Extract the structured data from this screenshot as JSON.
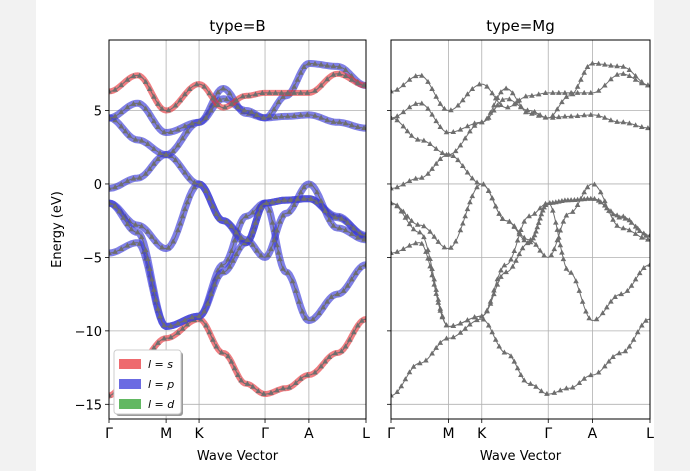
{
  "colors": {
    "s": "#e8383d",
    "p": "#3a3ad8",
    "d": "#2ea02e",
    "marker": "#6e6e6e"
  },
  "chart_data": [
    {
      "type": "line",
      "title": "type=B",
      "xlabel": "Wave Vector",
      "ylabel": "Energy (eV)",
      "ylim": [
        -16,
        9.8
      ],
      "yticks": [
        5,
        0,
        -5,
        -10,
        -15
      ],
      "ytick_labels": [
        "5",
        "0",
        "−5",
        "−10",
        "−15"
      ],
      "kpoints": [
        {
          "label": "Γ",
          "x": 0
        },
        {
          "label": "M",
          "x": 1
        },
        {
          "label": "K",
          "x": 1.577
        },
        {
          "label": "Γ",
          "x": 2.732
        },
        {
          "label": "A",
          "x": 3.5
        },
        {
          "label": "L",
          "x": 4.5
        }
      ],
      "grid": true,
      "legend": {
        "placement": "lower-left",
        "entries": [
          {
            "label": "l = s",
            "color_key": "s"
          },
          {
            "label": "l = p",
            "color_key": "p"
          },
          {
            "label": "l = d",
            "color_key": "d"
          }
        ]
      },
      "bands": [
        {
          "name": "1",
          "orbital": "s",
          "points": [
            [
              0,
              -14.4
            ],
            [
              0.5,
              -12.2
            ],
            [
              1,
              -10.5
            ],
            [
              1.577,
              -9.2
            ],
            [
              2.0,
              -11.5
            ],
            [
              2.4,
              -13.6
            ],
            [
              2.732,
              -14.3
            ],
            [
              3.1,
              -13.9
            ],
            [
              3.5,
              -13.0
            ],
            [
              4.0,
              -11.5
            ],
            [
              4.5,
              -9.2
            ]
          ]
        },
        {
          "name": "2",
          "orbital": "p",
          "points": [
            [
              0,
              -4.7
            ],
            [
              0.5,
              -4.0
            ],
            [
              1,
              -9.7
            ],
            [
              1.577,
              -9.0
            ],
            [
              2.0,
              -5.5
            ],
            [
              2.4,
              -2.2
            ],
            [
              2.732,
              -1.3
            ],
            [
              3.1,
              -1.1
            ],
            [
              3.5,
              -1.0
            ],
            [
              4.0,
              -2.2
            ],
            [
              4.5,
              -3.6
            ]
          ]
        },
        {
          "name": "3",
          "orbital": "p",
          "points": [
            [
              0,
              -1.3
            ],
            [
              0.5,
              -2.8
            ],
            [
              1,
              -4.4
            ],
            [
              1.577,
              0.0
            ],
            [
              2.0,
              -2.5
            ],
            [
              2.4,
              -4.0
            ],
            [
              2.732,
              -1.3
            ],
            [
              3.1,
              -6.0
            ],
            [
              3.5,
              -9.3
            ],
            [
              4.0,
              -7.5
            ],
            [
              4.5,
              -5.5
            ]
          ]
        },
        {
          "name": "4",
          "orbital": "p",
          "points": [
            [
              0,
              -1.3
            ],
            [
              0.5,
              -3.3
            ],
            [
              1,
              -9.7
            ],
            [
              1.577,
              -9.0
            ],
            [
              2.0,
              -6.0
            ],
            [
              2.4,
              -4.0
            ],
            [
              2.732,
              -1.3
            ],
            [
              3.1,
              -1.1
            ],
            [
              3.5,
              -1.0
            ],
            [
              4.0,
              -2.3
            ],
            [
              4.5,
              -3.5
            ]
          ]
        },
        {
          "name": "5",
          "orbital": "p",
          "points": [
            [
              0,
              -0.3
            ],
            [
              0.5,
              0.4
            ],
            [
              1,
              2.0
            ],
            [
              1.577,
              0.0
            ],
            [
              2.0,
              -2.5
            ],
            [
              2.4,
              -3.8
            ],
            [
              2.732,
              -5.0
            ],
            [
              3.1,
              -2.0
            ],
            [
              3.5,
              0.0
            ],
            [
              4.0,
              -3.0
            ],
            [
              4.5,
              -3.8
            ]
          ]
        },
        {
          "name": "6",
          "orbital": "p",
          "points": [
            [
              0,
              4.5
            ],
            [
              0.5,
              3.0
            ],
            [
              1,
              2.0
            ],
            [
              1.577,
              4.2
            ],
            [
              2.0,
              6.5
            ],
            [
              2.4,
              4.8
            ],
            [
              2.732,
              4.5
            ],
            [
              3.1,
              4.6
            ],
            [
              3.5,
              4.7
            ],
            [
              4.0,
              4.2
            ],
            [
              4.5,
              3.8
            ]
          ]
        },
        {
          "name": "7",
          "orbital": "p",
          "points": [
            [
              0,
              4.5
            ],
            [
              0.5,
              5.5
            ],
            [
              1,
              3.5
            ],
            [
              1.577,
              4.2
            ],
            [
              2.0,
              5.8
            ],
            [
              2.4,
              5.0
            ],
            [
              2.732,
              4.5
            ],
            [
              3.1,
              6.0
            ],
            [
              3.5,
              8.2
            ],
            [
              4.0,
              8.0
            ],
            [
              4.5,
              6.7
            ]
          ]
        },
        {
          "name": "8",
          "orbital": "s",
          "points": [
            [
              0,
              6.3
            ],
            [
              0.5,
              7.4
            ],
            [
              1,
              5.0
            ],
            [
              1.577,
              6.8
            ],
            [
              2.0,
              5.2
            ],
            [
              2.4,
              6.0
            ],
            [
              2.732,
              6.2
            ],
            [
              3.1,
              6.2
            ],
            [
              3.5,
              6.2
            ],
            [
              4.0,
              7.5
            ],
            [
              4.5,
              6.7
            ]
          ]
        }
      ]
    },
    {
      "type": "line",
      "title": "type=Mg",
      "xlabel": "Wave Vector",
      "ylabel": "",
      "ylim": [
        -16,
        9.8
      ],
      "kpoints": [
        {
          "label": "Γ",
          "x": 0
        },
        {
          "label": "M",
          "x": 1
        },
        {
          "label": "K",
          "x": 1.577
        },
        {
          "label": "Γ",
          "x": 2.732
        },
        {
          "label": "A",
          "x": 3.5
        },
        {
          "label": "L",
          "x": 4.5
        }
      ],
      "grid": true,
      "bands": [
        {
          "name": "1",
          "points": [
            [
              0,
              -14.4
            ],
            [
              0.5,
              -12.2
            ],
            [
              1,
              -10.5
            ],
            [
              1.577,
              -9.2
            ],
            [
              2.0,
              -11.5
            ],
            [
              2.4,
              -13.6
            ],
            [
              2.732,
              -14.3
            ],
            [
              3.1,
              -13.9
            ],
            [
              3.5,
              -13.0
            ],
            [
              4.0,
              -11.5
            ],
            [
              4.5,
              -9.2
            ]
          ]
        },
        {
          "name": "2",
          "points": [
            [
              0,
              -4.7
            ],
            [
              0.5,
              -4.0
            ],
            [
              1,
              -9.7
            ],
            [
              1.577,
              -9.0
            ],
            [
              2.0,
              -5.5
            ],
            [
              2.4,
              -2.2
            ],
            [
              2.732,
              -1.3
            ],
            [
              3.1,
              -1.1
            ],
            [
              3.5,
              -1.0
            ],
            [
              4.0,
              -2.2
            ],
            [
              4.5,
              -3.6
            ]
          ]
        },
        {
          "name": "3",
          "points": [
            [
              0,
              -1.3
            ],
            [
              0.5,
              -2.8
            ],
            [
              1,
              -4.4
            ],
            [
              1.577,
              0.0
            ],
            [
              2.0,
              -2.5
            ],
            [
              2.4,
              -4.0
            ],
            [
              2.732,
              -1.3
            ],
            [
              3.1,
              -6.0
            ],
            [
              3.5,
              -9.3
            ],
            [
              4.0,
              -7.5
            ],
            [
              4.5,
              -5.5
            ]
          ]
        },
        {
          "name": "4",
          "points": [
            [
              0,
              -1.3
            ],
            [
              0.5,
              -3.3
            ],
            [
              1,
              -9.7
            ],
            [
              1.577,
              -9.0
            ],
            [
              2.0,
              -6.0
            ],
            [
              2.4,
              -4.0
            ],
            [
              2.732,
              -1.3
            ],
            [
              3.1,
              -1.1
            ],
            [
              3.5,
              -1.0
            ],
            [
              4.0,
              -2.3
            ],
            [
              4.5,
              -3.5
            ]
          ]
        },
        {
          "name": "5",
          "points": [
            [
              0,
              -0.3
            ],
            [
              0.5,
              0.4
            ],
            [
              1,
              2.0
            ],
            [
              1.577,
              0.0
            ],
            [
              2.0,
              -2.5
            ],
            [
              2.4,
              -3.8
            ],
            [
              2.732,
              -5.0
            ],
            [
              3.1,
              -2.0
            ],
            [
              3.5,
              0.0
            ],
            [
              4.0,
              -3.0
            ],
            [
              4.5,
              -3.8
            ]
          ]
        },
        {
          "name": "6",
          "points": [
            [
              0,
              4.5
            ],
            [
              0.5,
              3.0
            ],
            [
              1,
              2.0
            ],
            [
              1.577,
              4.2
            ],
            [
              2.0,
              6.5
            ],
            [
              2.4,
              4.8
            ],
            [
              2.732,
              4.5
            ],
            [
              3.1,
              4.6
            ],
            [
              3.5,
              4.7
            ],
            [
              4.0,
              4.2
            ],
            [
              4.5,
              3.8
            ]
          ]
        },
        {
          "name": "7",
          "points": [
            [
              0,
              4.5
            ],
            [
              0.5,
              5.5
            ],
            [
              1,
              3.5
            ],
            [
              1.577,
              4.2
            ],
            [
              2.0,
              5.8
            ],
            [
              2.4,
              5.0
            ],
            [
              2.732,
              4.5
            ],
            [
              3.1,
              6.0
            ],
            [
              3.5,
              8.2
            ],
            [
              4.0,
              8.0
            ],
            [
              4.5,
              6.7
            ]
          ]
        },
        {
          "name": "8",
          "points": [
            [
              0,
              6.3
            ],
            [
              0.5,
              7.4
            ],
            [
              1,
              5.0
            ],
            [
              1.577,
              6.8
            ],
            [
              2.0,
              5.2
            ],
            [
              2.4,
              6.0
            ],
            [
              2.732,
              6.2
            ],
            [
              3.1,
              6.2
            ],
            [
              3.5,
              6.2
            ],
            [
              4.0,
              7.5
            ],
            [
              4.5,
              6.7
            ]
          ]
        }
      ]
    }
  ]
}
